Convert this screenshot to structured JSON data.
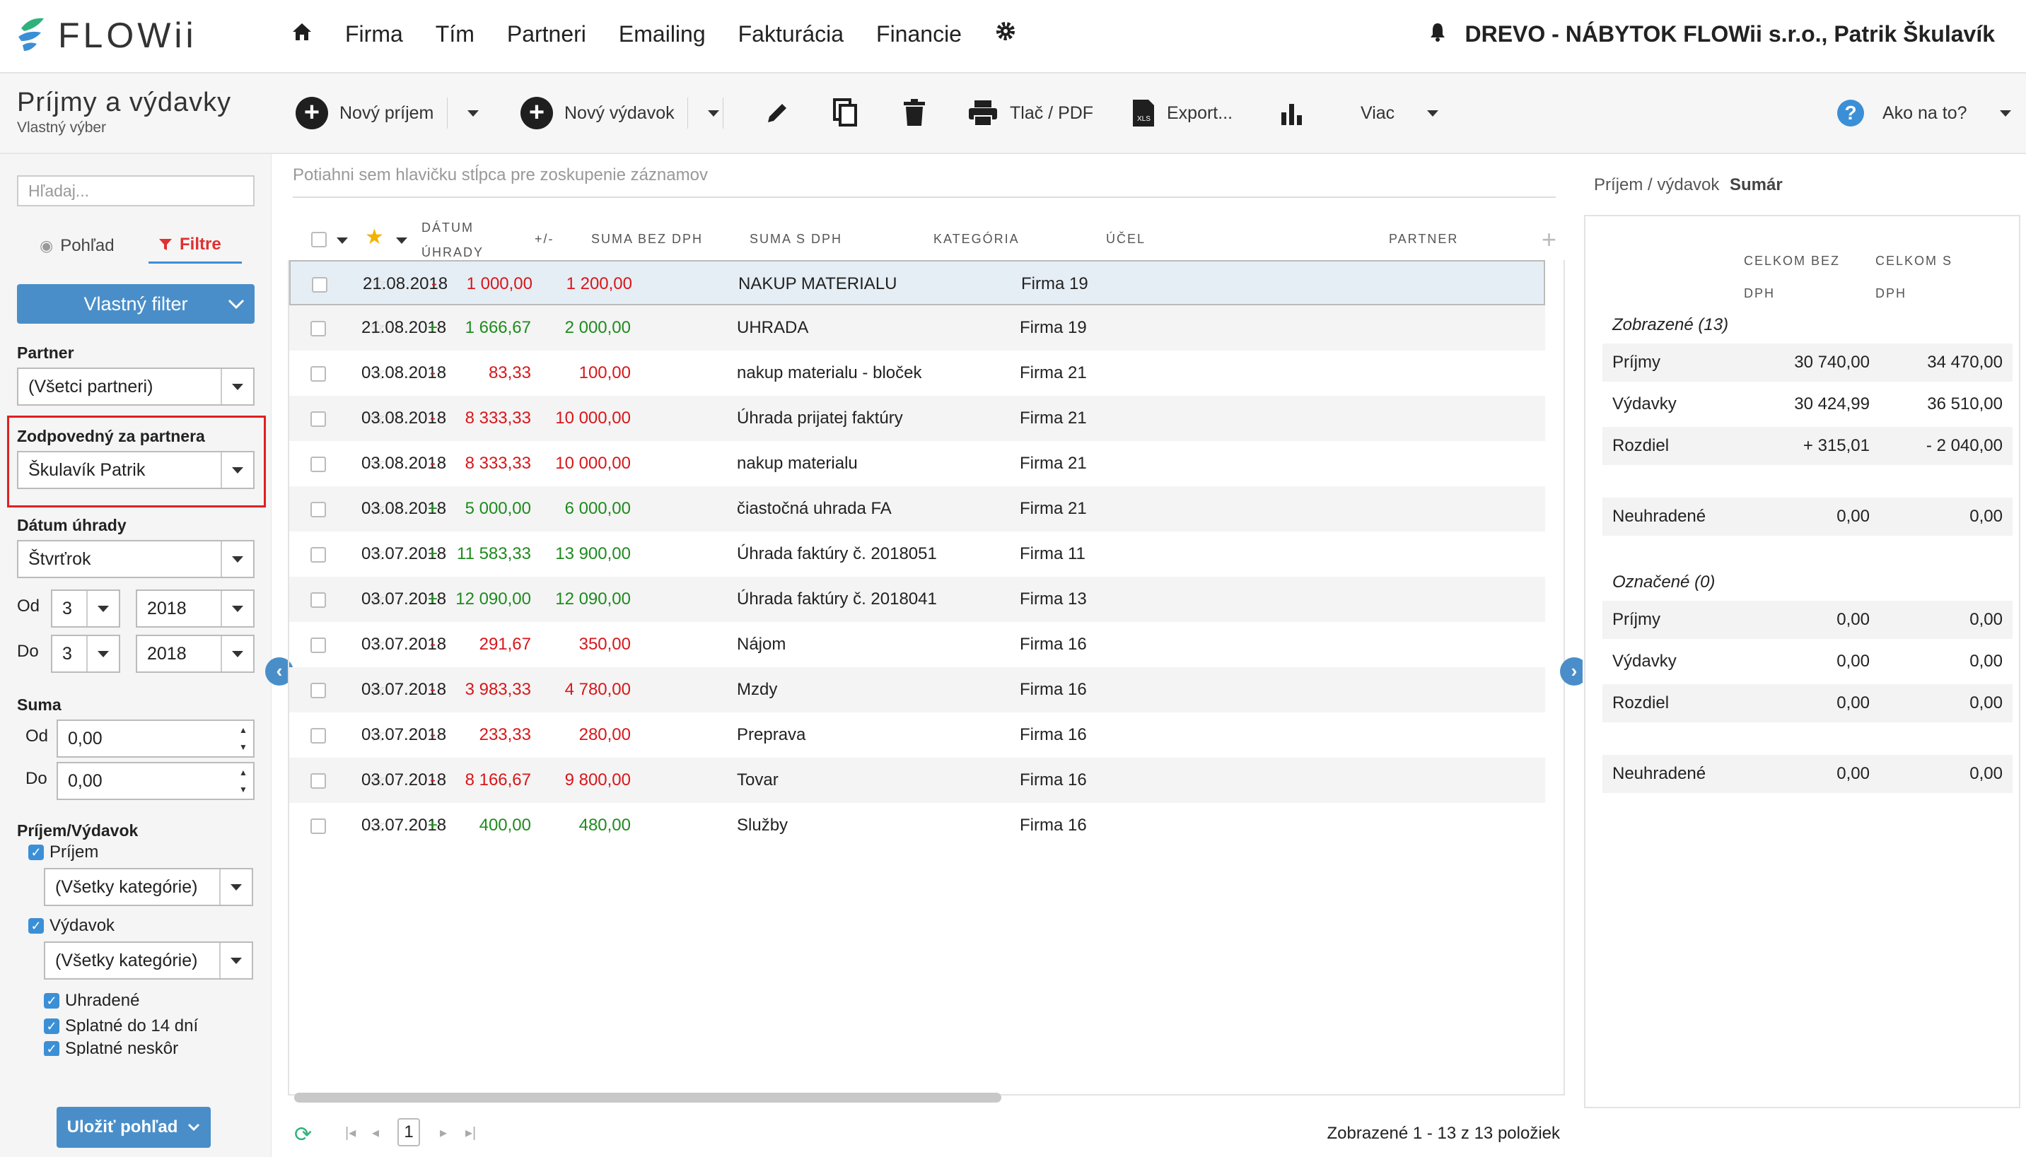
{
  "brand": {
    "name": "FLOWii"
  },
  "nav": {
    "items": [
      "Firma",
      "Tím",
      "Partneri",
      "Emailing",
      "Fakturácia",
      "Financie"
    ]
  },
  "user": {
    "company": "DREVO - NÁBYTOK FLOWii s.r.o., Patrik Škulavík"
  },
  "page": {
    "title": "Príjmy a výdavky",
    "subtitle": "Vlastný výber"
  },
  "toolbar": {
    "new_income": "Nový príjem",
    "new_expense": "Nový výdavok",
    "print": "Tlač / PDF",
    "export": "Export...",
    "more": "Viac",
    "help": "Ako na to?"
  },
  "sidebar": {
    "search_placeholder": "Hľadaj...",
    "tab_view": "Pohľad",
    "tab_filters": "Filtre",
    "custom_filter": "Vlastný filter",
    "partner_label": "Partner",
    "partner_value": "(Všetci partneri)",
    "responsible_label": "Zodpovedný za partnera",
    "responsible_value": "Škulavík Patrik",
    "date_label": "Dátum úhrady",
    "date_value": "Štvrťrok",
    "from_label": "Od",
    "to_label": "Do",
    "from_q": "3",
    "from_year": "2018",
    "to_q": "3",
    "to_year": "2018",
    "sum_label": "Suma",
    "sum_from": "0,00",
    "sum_to": "0,00",
    "type_label": "Príjem/Výdavok",
    "income_cb": "Príjem",
    "income_cat": "(Všetky kategórie)",
    "expense_cb": "Výdavok",
    "expense_cat": "(Všetky kategórie)",
    "paid_cb": "Uhradené",
    "due14_cb": "Splatné do 14 dní",
    "later_cb": "Splatné neskôr",
    "save_view": "Uložiť pohľad"
  },
  "grid": {
    "group_hint": "Potiahni sem hlavičku stĺpca pre zoskupenie záznamov",
    "headers": {
      "date1": "DÁTUM",
      "date2": "ÚHRADY",
      "sign": "+/-",
      "net": "SUMA BEZ DPH",
      "gross": "SUMA S DPH",
      "category": "KATEGÓRIA",
      "purpose": "ÚČEL",
      "partner": "PARTNER"
    },
    "rows": [
      {
        "date": "21.08.2018",
        "sign": "-",
        "net": "1 000,00",
        "gross": "1 200,00",
        "purpose": "NAKUP MATERIALU",
        "partner": "Firma 19"
      },
      {
        "date": "21.08.2018",
        "sign": "+",
        "net": "1 666,67",
        "gross": "2 000,00",
        "purpose": "UHRADA",
        "partner": "Firma 19"
      },
      {
        "date": "03.08.2018",
        "sign": "-",
        "net": "83,33",
        "gross": "100,00",
        "purpose": "nakup materialu - bloček",
        "partner": "Firma 21"
      },
      {
        "date": "03.08.2018",
        "sign": "-",
        "net": "8 333,33",
        "gross": "10 000,00",
        "purpose": "Úhrada prijatej faktúry",
        "partner": "Firma 21"
      },
      {
        "date": "03.08.2018",
        "sign": "-",
        "net": "8 333,33",
        "gross": "10 000,00",
        "purpose": "nakup materialu",
        "partner": "Firma 21"
      },
      {
        "date": "03.08.2018",
        "sign": "+",
        "net": "5 000,00",
        "gross": "6 000,00",
        "purpose": "čiastočná uhrada FA",
        "partner": "Firma 21"
      },
      {
        "date": "03.07.2018",
        "sign": "+",
        "net": "11 583,33",
        "gross": "13 900,00",
        "purpose": "Úhrada faktúry č. 2018051",
        "partner": "Firma 11"
      },
      {
        "date": "03.07.2018",
        "sign": "+",
        "net": "12 090,00",
        "gross": "12 090,00",
        "purpose": "Úhrada faktúry č. 2018041",
        "partner": "Firma 13"
      },
      {
        "date": "03.07.2018",
        "sign": "-",
        "net": "291,67",
        "gross": "350,00",
        "purpose": "Nájom",
        "partner": "Firma 16"
      },
      {
        "date": "03.07.2018",
        "sign": "-",
        "net": "3 983,33",
        "gross": "4 780,00",
        "purpose": "Mzdy",
        "partner": "Firma 16"
      },
      {
        "date": "03.07.2018",
        "sign": "-",
        "net": "233,33",
        "gross": "280,00",
        "purpose": "Preprava",
        "partner": "Firma 16"
      },
      {
        "date": "03.07.2018",
        "sign": "-",
        "net": "8 166,67",
        "gross": "9 800,00",
        "purpose": "Tovar",
        "partner": "Firma 16"
      },
      {
        "date": "03.07.2018",
        "sign": "+",
        "net": "400,00",
        "gross": "480,00",
        "purpose": "Služby",
        "partner": "Firma 16"
      }
    ],
    "page_number": "1",
    "pager_info": "Zobrazené 1 - 13 z 13 položiek"
  },
  "summary": {
    "tab_income_expense": "Príjem / výdavok",
    "tab_summary": "Sumár",
    "col1_a": "CELKOM BEZ",
    "col1_b": "DPH",
    "col2_a": "CELKOM S",
    "col2_b": "DPH",
    "shown_title": "Zobrazené (13)",
    "shown": [
      {
        "label": "Príjmy",
        "v1": "30 740,00",
        "v2": "34 470,00"
      },
      {
        "label": "Výdavky",
        "v1": "30 424,99",
        "v2": "36 510,00"
      },
      {
        "label": "Rozdiel",
        "v1": "+ 315,01",
        "v2": "- 2 040,00"
      }
    ],
    "shown_unpaid": {
      "label": "Neuhradené",
      "v1": "0,00",
      "v2": "0,00"
    },
    "marked_title": "Označené (0)",
    "marked": [
      {
        "label": "Príjmy",
        "v1": "0,00",
        "v2": "0,00"
      },
      {
        "label": "Výdavky",
        "v1": "0,00",
        "v2": "0,00"
      },
      {
        "label": "Rozdiel",
        "v1": "0,00",
        "v2": "0,00"
      }
    ],
    "marked_unpaid": {
      "label": "Neuhradené",
      "v1": "0,00",
      "v2": "0,00"
    }
  },
  "colors": {
    "accent": "#4a8ec9",
    "positive": "#1e8b1e",
    "negative": "#d9161a",
    "highlight_border": "#e02020"
  }
}
